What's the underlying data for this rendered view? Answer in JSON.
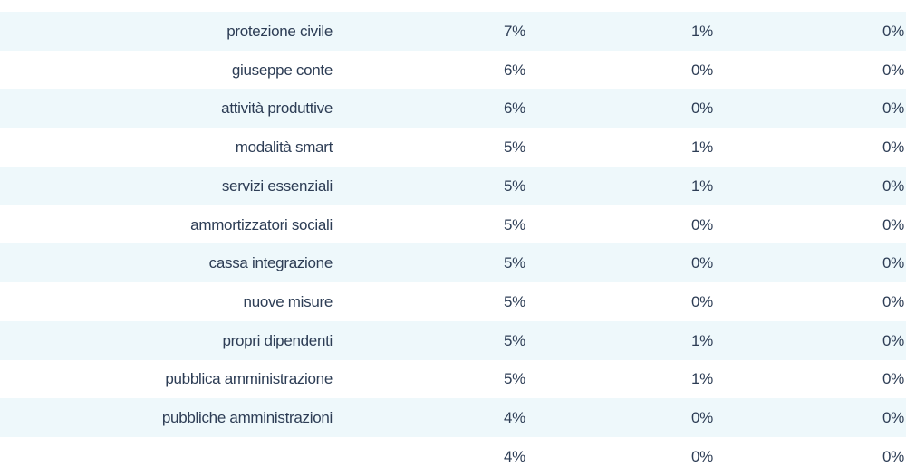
{
  "table": {
    "rows": [
      [
        "protezione civile",
        "7%",
        "1%",
        "0%"
      ],
      [
        "giuseppe conte",
        "6%",
        "0%",
        "0%"
      ],
      [
        "attività produttive",
        "6%",
        "0%",
        "0%"
      ],
      [
        "modalità smart",
        "5%",
        "1%",
        "0%"
      ],
      [
        "servizi essenziali",
        "5%",
        "1%",
        "0%"
      ],
      [
        "ammortizzatori sociali",
        "5%",
        "0%",
        "0%"
      ],
      [
        "cassa integrazione",
        "5%",
        "0%",
        "0%"
      ],
      [
        "nuove misure",
        "5%",
        "0%",
        "0%"
      ],
      [
        "propri dipendenti",
        "5%",
        "1%",
        "0%"
      ],
      [
        "pubblica amministrazione",
        "5%",
        "1%",
        "0%"
      ],
      [
        "pubbliche amministrazioni",
        "4%",
        "0%",
        "0%"
      ],
      [
        null,
        "4%",
        "0%",
        "0%"
      ]
    ]
  }
}
